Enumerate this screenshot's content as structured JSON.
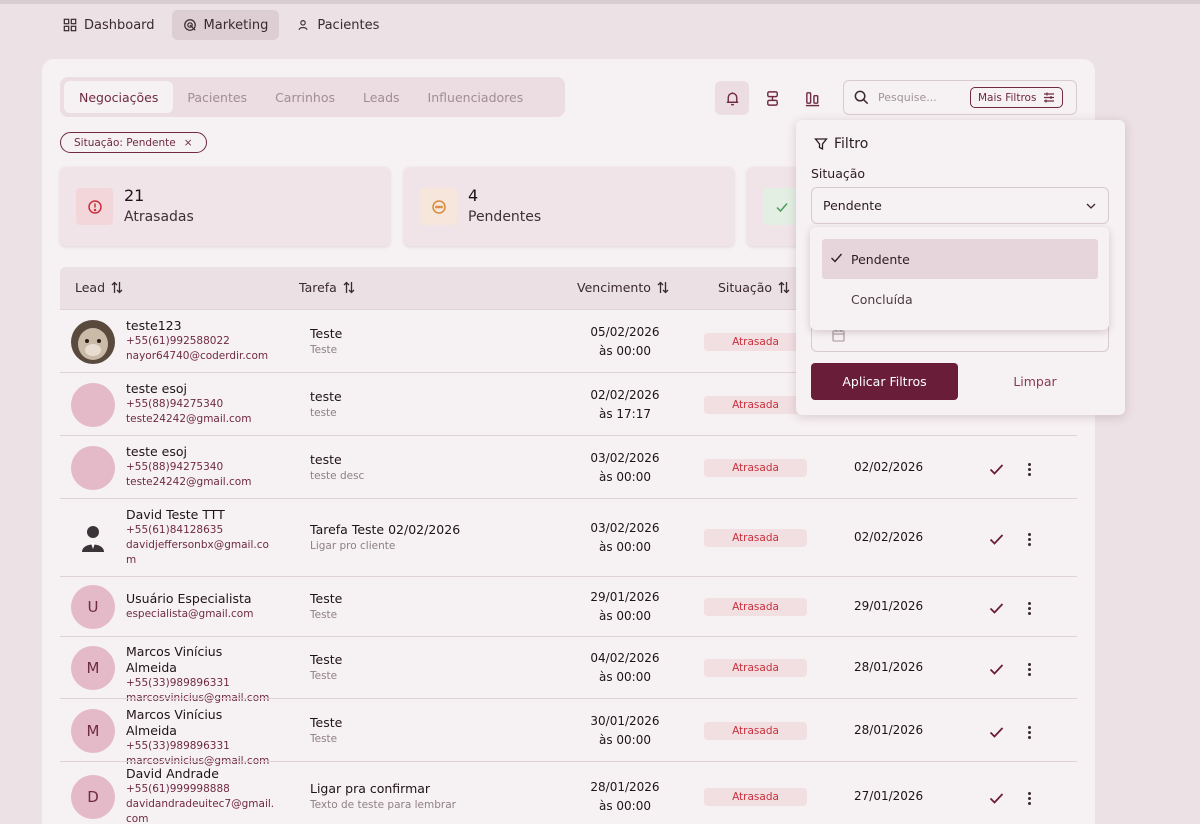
{
  "topnav": {
    "items": [
      {
        "label": "Dashboard",
        "icon": "dashboard-grid-icon"
      },
      {
        "label": "Marketing",
        "icon": "target-icon"
      },
      {
        "label": "Pacientes",
        "icon": "user-icon"
      }
    ],
    "active": "Marketing"
  },
  "tabs": {
    "items": [
      "Negociações",
      "Pacientes",
      "Carrinhos",
      "Leads",
      "Influenciadores"
    ],
    "active": "Negociações"
  },
  "toolbar": {
    "icons": [
      "bell-icon",
      "group-icon",
      "columns-icon"
    ],
    "search_placeholder": "Pesquise...",
    "more_filters_label": "Mais Filtros"
  },
  "chip": {
    "label": "Situação: Pendente",
    "close": "×"
  },
  "stats": [
    {
      "value": "21",
      "label": "Atrasadas",
      "icon": "alert-circle-icon"
    },
    {
      "value": "4",
      "label": "Pendentes",
      "icon": "dots-circle-icon"
    },
    {
      "icon": "check-icon"
    }
  ],
  "table": {
    "headers": {
      "lead": "Lead",
      "task": "Tarefa",
      "due": "Vencimento",
      "status": "Situação"
    },
    "rows": [
      {
        "initial": "",
        "photo": "animal-photo",
        "name": "teste123",
        "phone": "+55(61)992588022",
        "email": "nayor64740@coderdir.com",
        "task": "Teste",
        "task_desc": "Teste",
        "due_date": "05/02/2026",
        "due_time": "às 00:00",
        "status": "Atrasada",
        "date": ""
      },
      {
        "initial": "",
        "name": "teste esoj",
        "phone": "+55(88)94275340",
        "email": "teste24242@gmail.com",
        "task": "teste",
        "task_desc": "teste",
        "due_date": "02/02/2026",
        "due_time": "às 17:17",
        "status": "Atrasada",
        "date": ""
      },
      {
        "initial": "",
        "name": "teste esoj",
        "phone": "+55(88)94275340",
        "email": "teste24242@gmail.com",
        "task": "teste",
        "task_desc": "teste desc",
        "due_date": "03/02/2026",
        "due_time": "às 00:00",
        "status": "Atrasada",
        "date": "02/02/2026"
      },
      {
        "initial": "",
        "photo": "person-suit-icon",
        "name": "David Teste TTT",
        "phone": "+55(61)84128635",
        "email": "davidjeffersonbx@gmail.com",
        "task": "Tarefa Teste 02/02/2026",
        "task_desc": "Ligar pro cliente",
        "due_date": "03/02/2026",
        "due_time": "às 00:00",
        "status": "Atrasada",
        "date": "02/02/2026"
      },
      {
        "initial": "U",
        "name": "Usuário Especialista",
        "phone": "",
        "email": "especialista@gmail.com",
        "task": "Teste",
        "task_desc": "Teste",
        "due_date": "29/01/2026",
        "due_time": "às 00:00",
        "status": "Atrasada",
        "date": "29/01/2026"
      },
      {
        "initial": "M",
        "name": "Marcos Vinícius Almeida",
        "phone": "+55(33)989896331",
        "email": "marcosvinicius@gmail.com",
        "task": "Teste",
        "task_desc": "Teste",
        "due_date": "04/02/2026",
        "due_time": "às 00:00",
        "status": "Atrasada",
        "date": "28/01/2026"
      },
      {
        "initial": "M",
        "name": "Marcos Vinícius Almeida",
        "phone": "+55(33)989896331",
        "email": "marcosvinicius@gmail.com",
        "task": "Teste",
        "task_desc": "Teste",
        "due_date": "30/01/2026",
        "due_time": "às 00:00",
        "status": "Atrasada",
        "date": "28/01/2026"
      },
      {
        "initial": "D",
        "name": "David Andrade",
        "phone": "+55(61)999998888",
        "email": "davidandradeuitec7@gmail.com",
        "task": "Ligar pra confirmar",
        "task_desc": "Texto de teste para lembrar",
        "due_date": "28/01/2026",
        "due_time": "às 00:00",
        "status": "Atrasada",
        "date": "27/01/2026"
      }
    ]
  },
  "filter_panel": {
    "title": "Filtro",
    "situation_label": "Situação",
    "selected": "Pendente",
    "options": [
      "Pendente",
      "Concluída"
    ],
    "apply_label": "Aplicar Filtros",
    "clear_label": "Limpar"
  },
  "colors": {
    "brand": "#6a1d38",
    "late": "#c9303d",
    "late_bg": "#f1dfe2",
    "background": "#ece1e4"
  }
}
